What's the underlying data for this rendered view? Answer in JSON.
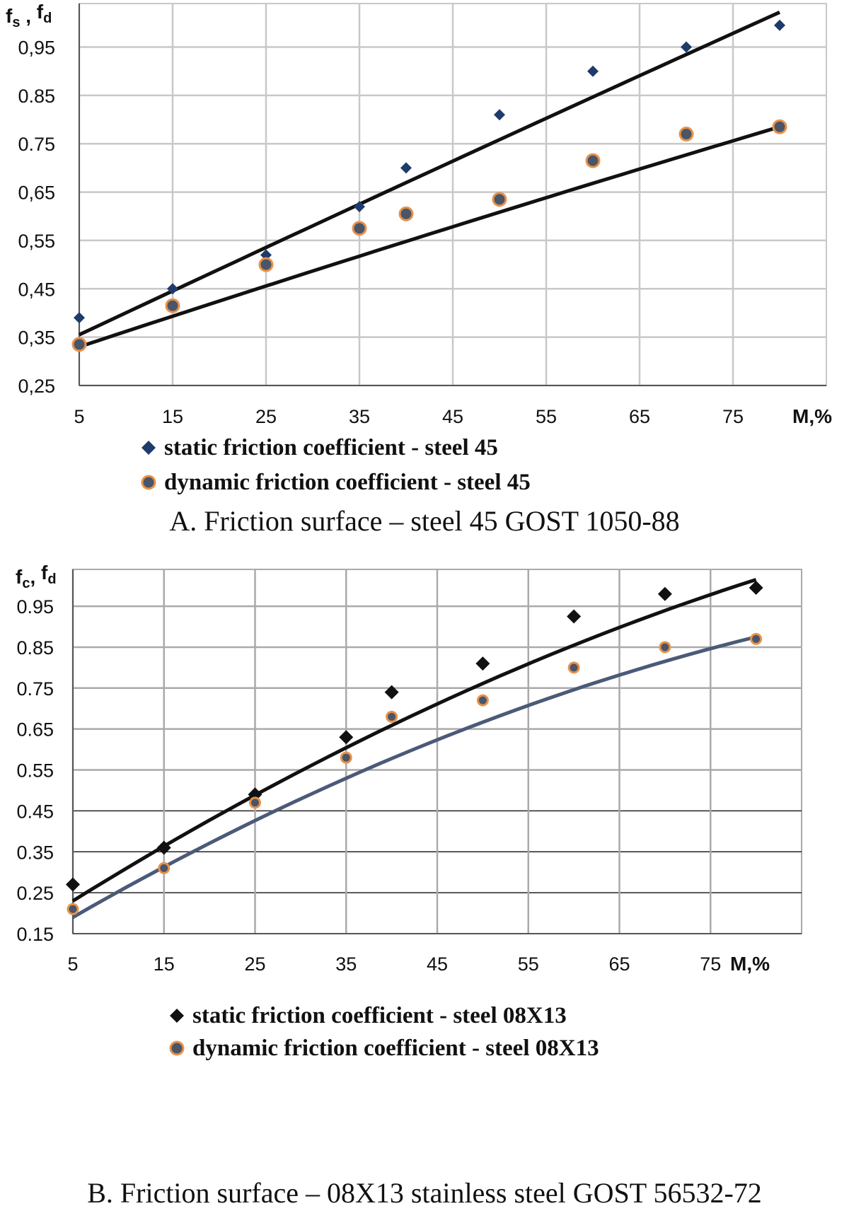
{
  "chart_data": [
    {
      "type": "scatter",
      "caption": "A. Friction surface – steel 45 GOST 1050-88",
      "ylabel_main": "f",
      "ylabel_sub1": "s",
      "ylabel_sep": " , ",
      "ylabel_main2": "f",
      "ylabel_sub2": "d",
      "xlabel": "M,%",
      "y_ticks": [
        "0,95",
        "0.85",
        "0.75",
        "0,65",
        "0,55",
        "0,45",
        "0,35",
        "0,25"
      ],
      "x_ticks": [
        "5",
        "15",
        "25",
        "35",
        "45",
        "55",
        "65",
        "75"
      ],
      "xlim": [
        5,
        85
      ],
      "ylim": [
        0.25,
        1.04
      ],
      "grid": true,
      "legend_position": "bottom",
      "series": [
        {
          "name": "static friction coefficient - steel 45",
          "marker": "diamond",
          "color": "#1f3b6b",
          "x": [
            5,
            15,
            25,
            35,
            40,
            50,
            60,
            70,
            80
          ],
          "y": [
            0.39,
            0.45,
            0.52,
            0.62,
            0.7,
            0.81,
            0.9,
            0.95,
            0.995
          ],
          "trend": {
            "x": [
              5,
              80
            ],
            "y": [
              0.355,
              1.022
            ],
            "curvature": 0.02
          }
        },
        {
          "name": "dynamic friction coefficient - steel 45",
          "marker": "circle",
          "color": "#4a5568",
          "edge": "#e8924a",
          "x": [
            5,
            15,
            25,
            35,
            40,
            50,
            60,
            70,
            80
          ],
          "y": [
            0.335,
            0.415,
            0.5,
            0.575,
            0.605,
            0.635,
            0.715,
            0.77,
            0.785
          ],
          "trend": {
            "x": [
              5,
              80
            ],
            "y": [
              0.33,
              0.785
            ],
            "curvature": 0.05
          }
        }
      ]
    },
    {
      "type": "scatter",
      "caption": "B. Friction surface – 08X13 stainless steel GOST 56532-72",
      "ylabel_main": "f",
      "ylabel_sub1": "c",
      "ylabel_sep": ", ",
      "ylabel_main2": "f",
      "ylabel_sub2": "d",
      "xlabel": "M,%",
      "y_ticks": [
        "0.95",
        "0.85",
        "0.75",
        "0.65",
        "0.55",
        "0.45",
        "0.35",
        "0.25",
        "0.15"
      ],
      "x_ticks": [
        "5",
        "15",
        "25",
        "35",
        "45",
        "55",
        "65",
        "75"
      ],
      "xlim": [
        5,
        85
      ],
      "ylim": [
        0.15,
        1.04
      ],
      "grid": true,
      "legend_position": "bottom",
      "series": [
        {
          "name": "static friction coefficient - steel 08X13",
          "marker": "diamond",
          "color": "#111111",
          "x": [
            5,
            15,
            25,
            35,
            40,
            50,
            60,
            70,
            80
          ],
          "y": [
            0.27,
            0.36,
            0.49,
            0.63,
            0.74,
            0.81,
            0.925,
            0.98,
            0.995
          ],
          "trend": {
            "x": [
              5,
              80
            ],
            "y": [
              0.23,
              1.015
            ],
            "curvature": 0.32
          }
        },
        {
          "name": "dynamic friction coefficient - steel 08X13",
          "marker": "circle",
          "color": "#4a5568",
          "edge": "#e8924a",
          "x": [
            5,
            15,
            25,
            35,
            40,
            50,
            60,
            70,
            80
          ],
          "y": [
            0.21,
            0.31,
            0.47,
            0.58,
            0.68,
            0.72,
            0.8,
            0.85,
            0.87
          ],
          "trend": {
            "x": [
              5,
              80
            ],
            "y": [
              0.19,
              0.875
            ],
            "curvature": 0.4,
            "color": "#4b5a78"
          }
        }
      ]
    }
  ]
}
